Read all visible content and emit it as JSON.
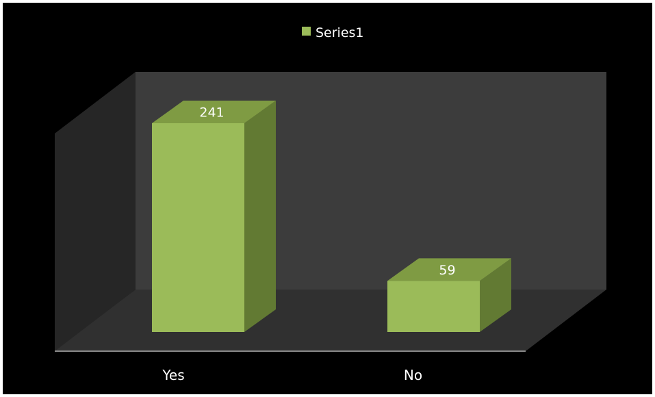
{
  "chart_data": {
    "type": "bar",
    "style": "3d-column",
    "categories": [
      "Yes",
      "No"
    ],
    "series": [
      {
        "name": "Series1",
        "values": [
          241,
          59
        ]
      }
    ],
    "data_labels": [
      "241",
      "59"
    ],
    "ylim": [
      0,
      241
    ],
    "legend_position": "top",
    "gridlines": false,
    "colors": {
      "background": "#000000",
      "back_wall": "#3c3c3c",
      "side_wall": "#262626",
      "floor": "#303030",
      "bar_front": "#9bbb59",
      "bar_top": "#7f9b43",
      "bar_side": "#627a33",
      "text": "#ffffff"
    }
  }
}
